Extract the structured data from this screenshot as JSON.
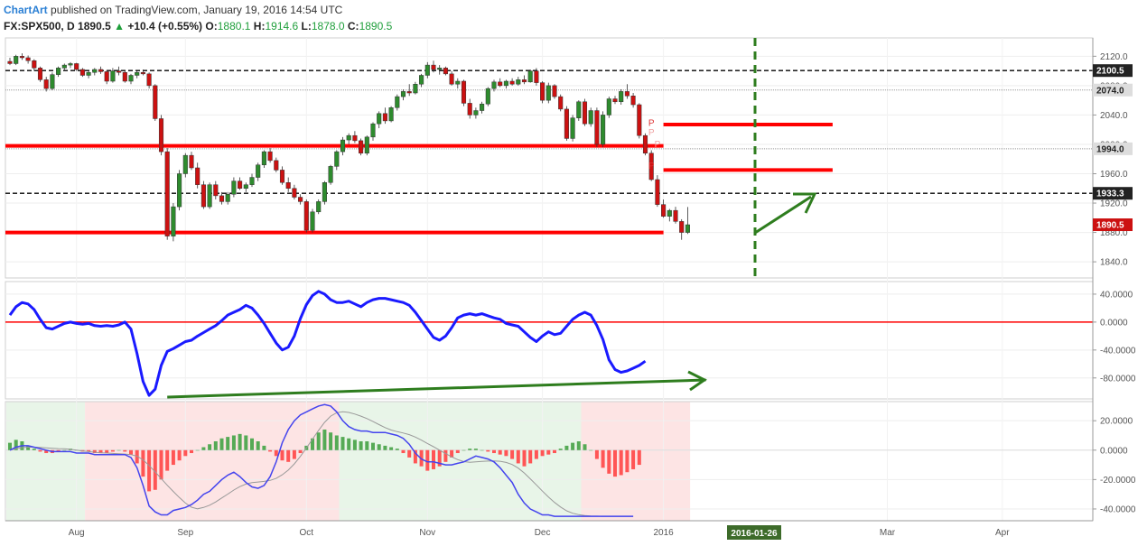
{
  "header": {
    "brand": "ChartArt",
    "published_text": "published on TradingView.com, January 19, 2016 14:54 UTC",
    "symbol": "FX:SPX500, D",
    "last": "1890.5",
    "change": "+10.4 (+0.55%)",
    "o_label": "O:",
    "o_value": "1880.1",
    "h_label": "H:",
    "h_value": "1914.6",
    "l_label": "L:",
    "l_value": "1878.0",
    "c_label": "C:",
    "c_value": "1890.5"
  },
  "colors": {
    "up": "#2e8b2e",
    "down": "#cc1111",
    "level_line": "#ff0000",
    "annotation": "#2e7d1e",
    "oscillator": "#1a1aff",
    "macd_signal": "#999999",
    "hist_pos": "#55aa55",
    "hist_neg": "#ff5555",
    "bg_green": "#e8f5e8",
    "bg_red": "#fde4e4"
  },
  "chart_data": [
    {
      "type": "candlestick",
      "panel": "price",
      "y_ticks": [
        "2120.0",
        "2080.0",
        "2040.0",
        "2000.0",
        "1960.0",
        "1920.0",
        "1880.0",
        "1840.0"
      ],
      "y_tick_values": [
        2120,
        2080,
        2040,
        2000,
        1960,
        1920,
        1880,
        1840
      ],
      "ylim": [
        1818,
        2145
      ],
      "candles": [
        [
          2113,
          2118,
          2108,
          2110
        ],
        [
          2110,
          2122,
          2108,
          2120
        ],
        [
          2120,
          2124,
          2115,
          2118
        ],
        [
          2118,
          2121,
          2110,
          2114
        ],
        [
          2114,
          2116,
          2100,
          2104
        ],
        [
          2104,
          2106,
          2085,
          2088
        ],
        [
          2088,
          2092,
          2072,
          2076
        ],
        [
          2076,
          2098,
          2074,
          2095
        ],
        [
          2095,
          2106,
          2092,
          2104
        ],
        [
          2104,
          2110,
          2100,
          2108
        ],
        [
          2108,
          2112,
          2104,
          2110
        ],
        [
          2110,
          2111,
          2100,
          2102
        ],
        [
          2102,
          2104,
          2092,
          2094
        ],
        [
          2094,
          2100,
          2090,
          2098
        ],
        [
          2098,
          2104,
          2094,
          2102
        ],
        [
          2102,
          2106,
          2096,
          2099
        ],
        [
          2099,
          2101,
          2082,
          2086
        ],
        [
          2086,
          2104,
          2084,
          2100
        ],
        [
          2100,
          2106,
          2094,
          2098
        ],
        [
          2098,
          2100,
          2084,
          2086
        ],
        [
          2086,
          2096,
          2082,
          2094
        ],
        [
          2094,
          2100,
          2090,
          2098
        ],
        [
          2098,
          2102,
          2094,
          2096
        ],
        [
          2096,
          2098,
          2076,
          2080
        ],
        [
          2080,
          2082,
          2032,
          2035
        ],
        [
          2035,
          2040,
          1985,
          1990
        ],
        [
          1990,
          1995,
          1870,
          1875
        ],
        [
          1875,
          1920,
          1868,
          1915
        ],
        [
          1915,
          1965,
          1910,
          1960
        ],
        [
          1960,
          1988,
          1955,
          1985
        ],
        [
          1985,
          1990,
          1965,
          1968
        ],
        [
          1968,
          1975,
          1940,
          1945
        ],
        [
          1945,
          1950,
          1912,
          1915
        ],
        [
          1915,
          1948,
          1912,
          1945
        ],
        [
          1945,
          1950,
          1925,
          1930
        ],
        [
          1930,
          1935,
          1918,
          1922
        ],
        [
          1922,
          1935,
          1918,
          1932
        ],
        [
          1932,
          1955,
          1928,
          1950
        ],
        [
          1950,
          1955,
          1938,
          1940
        ],
        [
          1940,
          1948,
          1935,
          1945
        ],
        [
          1945,
          1960,
          1942,
          1955
        ],
        [
          1955,
          1975,
          1950,
          1972
        ],
        [
          1972,
          1992,
          1968,
          1990
        ],
        [
          1990,
          1995,
          1975,
          1978
        ],
        [
          1978,
          1982,
          1962,
          1965
        ],
        [
          1965,
          1970,
          1945,
          1948
        ],
        [
          1948,
          1955,
          1935,
          1940
        ],
        [
          1940,
          1945,
          1925,
          1928
        ],
        [
          1928,
          1932,
          1918,
          1922
        ],
        [
          1922,
          1925,
          1880,
          1883
        ],
        [
          1883,
          1912,
          1880,
          1908
        ],
        [
          1908,
          1925,
          1905,
          1922
        ],
        [
          1922,
          1950,
          1918,
          1948
        ],
        [
          1948,
          1972,
          1945,
          1970
        ],
        [
          1970,
          1992,
          1965,
          1990
        ],
        [
          1990,
          2010,
          1985,
          2006
        ],
        [
          2006,
          2015,
          2000,
          2012
        ],
        [
          2012,
          2018,
          2002,
          2005
        ],
        [
          2005,
          2008,
          1985,
          1988
        ],
        [
          1988,
          2012,
          1985,
          2010
        ],
        [
          2010,
          2030,
          2005,
          2028
        ],
        [
          2028,
          2045,
          2022,
          2042
        ],
        [
          2042,
          2050,
          2028,
          2032
        ],
        [
          2032,
          2052,
          2030,
          2050
        ],
        [
          2050,
          2068,
          2046,
          2065
        ],
        [
          2065,
          2075,
          2060,
          2072
        ],
        [
          2072,
          2082,
          2066,
          2070
        ],
        [
          2070,
          2085,
          2068,
          2082
        ],
        [
          2082,
          2096,
          2078,
          2094
        ],
        [
          2094,
          2112,
          2090,
          2108
        ],
        [
          2108,
          2114,
          2098,
          2102
        ],
        [
          2102,
          2108,
          2095,
          2104
        ],
        [
          2104,
          2106,
          2094,
          2096
        ],
        [
          2096,
          2100,
          2080,
          2082
        ],
        [
          2082,
          2090,
          2076,
          2086
        ],
        [
          2086,
          2088,
          2052,
          2056
        ],
        [
          2056,
          2062,
          2035,
          2040
        ],
        [
          2040,
          2050,
          2035,
          2046
        ],
        [
          2046,
          2058,
          2042,
          2055
        ],
        [
          2055,
          2078,
          2052,
          2076
        ],
        [
          2076,
          2088,
          2072,
          2085
        ],
        [
          2085,
          2090,
          2078,
          2080
        ],
        [
          2080,
          2088,
          2076,
          2086
        ],
        [
          2086,
          2090,
          2080,
          2082
        ],
        [
          2082,
          2092,
          2080,
          2088
        ],
        [
          2088,
          2094,
          2082,
          2085
        ],
        [
          2085,
          2102,
          2084,
          2100
        ],
        [
          2100,
          2104,
          2080,
          2084
        ],
        [
          2084,
          2086,
          2056,
          2060
        ],
        [
          2060,
          2084,
          2056,
          2080
        ],
        [
          2080,
          2082,
          2062,
          2065
        ],
        [
          2065,
          2068,
          2045,
          2048
        ],
        [
          2048,
          2052,
          2005,
          2008
        ],
        [
          2008,
          2040,
          2004,
          2036
        ],
        [
          2036,
          2060,
          2032,
          2058
        ],
        [
          2058,
          2062,
          2025,
          2028
        ],
        [
          2028,
          2050,
          2024,
          2046
        ],
        [
          2046,
          2050,
          1996,
          2000
        ],
        [
          2000,
          2045,
          1996,
          2040
        ],
        [
          2040,
          2065,
          2036,
          2062
        ],
        [
          2062,
          2066,
          2055,
          2058
        ],
        [
          2058,
          2075,
          2054,
          2072
        ],
        [
          2072,
          2082,
          2062,
          2066
        ],
        [
          2066,
          2070,
          2050,
          2054
        ],
        [
          2054,
          2056,
          2008,
          2012
        ],
        [
          2012,
          2015,
          1985,
          1988
        ],
        [
          1988,
          1992,
          1950,
          1952
        ],
        [
          1952,
          1958,
          1915,
          1918
        ],
        [
          1918,
          1925,
          1900,
          1902
        ],
        [
          1902,
          1912,
          1895,
          1910
        ],
        [
          1910,
          1915,
          1892,
          1895
        ],
        [
          1895,
          1898,
          1870,
          1880
        ],
        [
          1880,
          1914.6,
          1878,
          1890.5
        ]
      ],
      "levels": [
        {
          "label": "2100.5",
          "value": 2100.5,
          "style": "black-dashed"
        },
        {
          "label": "2074.0",
          "value": 2074.0,
          "style": "grey"
        },
        {
          "label": "1994.0",
          "value": 1994.0,
          "style": "grey"
        },
        {
          "label": "1933.3",
          "value": 1933.3,
          "style": "black-dashed"
        },
        {
          "label": "1890.5",
          "value": 1890.5,
          "style": "price"
        }
      ],
      "red_lines": [
        {
          "value": 1998,
          "x_from": "Jul",
          "x_to": "2016"
        },
        {
          "value": 1880,
          "x_from": "Jul",
          "x_to": "2016"
        },
        {
          "value": 2027,
          "x_from": "2016",
          "x_to": "Feb"
        },
        {
          "value": 1965,
          "x_from": "2016",
          "x_to": "Feb"
        }
      ],
      "pivot_markers": [
        "P",
        "P",
        "P",
        "P"
      ]
    },
    {
      "type": "line",
      "panel": "oscillator",
      "y_ticks": [
        "40.0000",
        "0.0000",
        "-40.0000",
        "-80.0000"
      ],
      "y_tick_values": [
        40,
        0,
        -40,
        -80
      ],
      "ylim": [
        -110,
        58
      ],
      "values": [
        10,
        22,
        28,
        26,
        18,
        4,
        -8,
        -10,
        -6,
        -2,
        0,
        -2,
        -3,
        -2,
        -5,
        -6,
        -5,
        -6,
        -4,
        0,
        -10,
        -45,
        -85,
        -105,
        -96,
        -62,
        -42,
        -38,
        -33,
        -28,
        -26,
        -20,
        -15,
        -10,
        -5,
        2,
        10,
        14,
        18,
        24,
        20,
        10,
        -2,
        -16,
        -30,
        -40,
        -36,
        -20,
        5,
        25,
        38,
        44,
        40,
        32,
        28,
        28,
        30,
        26,
        22,
        28,
        32,
        34,
        34,
        32,
        30,
        28,
        24,
        14,
        2,
        -10,
        -22,
        -26,
        -20,
        -8,
        6,
        10,
        12,
        10,
        12,
        9,
        6,
        4,
        -2,
        -4,
        -6,
        -14,
        -22,
        -28,
        -20,
        -14,
        -18,
        -16,
        -6,
        4,
        10,
        14,
        10,
        -5,
        -25,
        -54,
        -68,
        -72,
        -70,
        -66,
        -62,
        -56
      ]
    },
    {
      "type": "bar",
      "panel": "macd",
      "y_ticks": [
        "20.0000",
        "0.0000",
        "-20.0000",
        "-40.0000"
      ],
      "y_tick_values": [
        20,
        0,
        -20,
        -40
      ],
      "ylim": [
        -48,
        33
      ],
      "histogram": [
        5,
        7,
        6,
        3,
        1,
        -1,
        -2,
        -2,
        -1,
        0,
        1,
        0,
        -1,
        -1,
        -2,
        -2,
        -2,
        -1,
        0,
        -1,
        -3,
        -9,
        -18,
        -28,
        -27,
        -20,
        -14,
        -10,
        -7,
        -4,
        -2,
        0,
        2,
        4,
        6,
        8,
        9,
        10,
        11,
        10,
        8,
        6,
        3,
        -1,
        -4,
        -7,
        -8,
        -6,
        -2,
        3,
        8,
        12,
        14,
        12,
        10,
        9,
        8,
        7,
        6,
        6,
        5,
        4,
        3,
        2,
        1,
        -2,
        -5,
        -9,
        -11,
        -14,
        -13,
        -11,
        -8,
        -5,
        -2,
        0,
        1,
        1,
        0,
        -1,
        -2,
        -3,
        -4,
        -6,
        -9,
        -11,
        -9,
        -6,
        -4,
        -3,
        -2,
        1,
        3,
        5,
        6,
        4,
        0,
        -6,
        -12,
        -16,
        -18,
        -17,
        -15,
        -13,
        -10
      ],
      "macd": [
        0,
        2,
        3,
        3,
        2,
        1,
        0,
        -1,
        -1,
        -1,
        -1,
        -2,
        -2,
        -2,
        -3,
        -3,
        -3,
        -3,
        -3,
        -3,
        -5,
        -12,
        -24,
        -38,
        -42,
        -44,
        -44,
        -41,
        -40,
        -39,
        -37,
        -34,
        -30,
        -28,
        -24,
        -20,
        -17,
        -15,
        -18,
        -22,
        -25,
        -26,
        -24,
        -18,
        -8,
        5,
        14,
        20,
        24,
        26,
        28,
        30,
        31,
        30,
        26,
        20,
        16,
        14,
        13,
        13,
        12,
        12,
        12,
        11,
        10,
        8,
        4,
        -2,
        -6,
        -8,
        -8,
        -9,
        -10,
        -10,
        -9,
        -8,
        -6,
        -4,
        -5,
        -6,
        -8,
        -12,
        -17,
        -22,
        -30,
        -36,
        -40,
        -42,
        -44,
        -44,
        -45,
        -45,
        -45,
        -45,
        -45,
        -45,
        -45,
        -45,
        -45,
        -45,
        -45,
        -45,
        -45,
        -45
      ]
    }
  ],
  "x_axis": {
    "labels": [
      "Aug",
      "Sep",
      "Oct",
      "Nov",
      "Dec",
      "2016",
      "Mar",
      "Apr"
    ],
    "cursor_label": "2016-01-26"
  }
}
